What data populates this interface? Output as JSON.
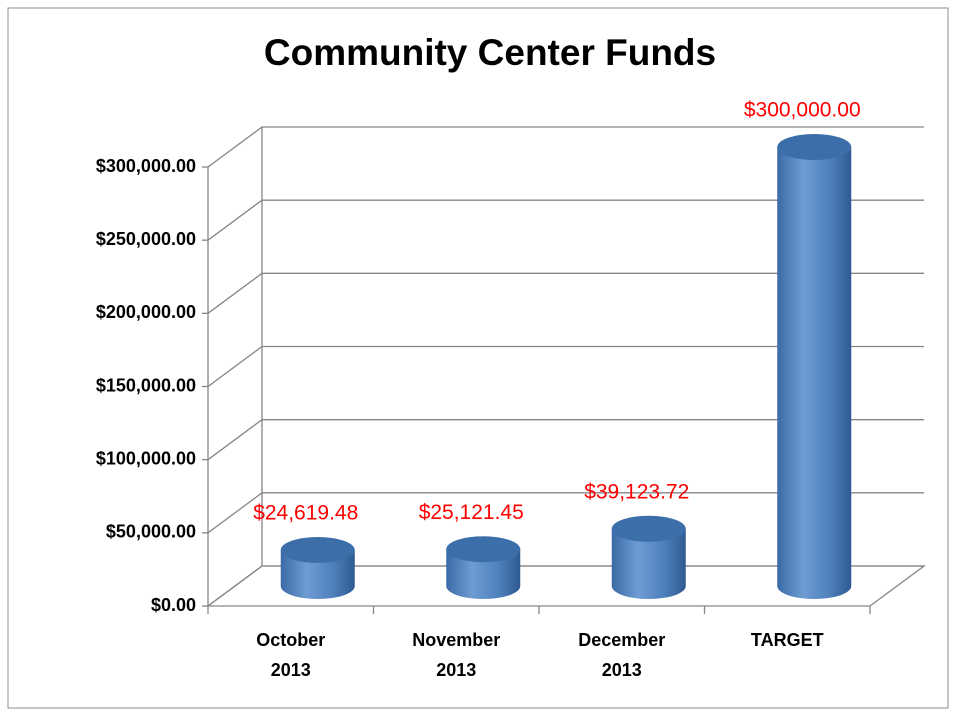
{
  "chart_data": {
    "type": "bar3d",
    "title": "Community Center Funds",
    "categories": [
      "October 2013",
      "November 2013",
      "December 2013",
      "TARGET"
    ],
    "values": [
      24619.48,
      25121.45,
      39123.72,
      300000
    ],
    "value_labels": [
      "$24,619.48",
      "$25,121.45",
      "$39,123.72",
      "$300,000.00"
    ],
    "color": "#4f81bd",
    "value_label_color": "#ff0000",
    "ylim": [
      0,
      300000
    ],
    "yticks": [
      {
        "value": 0,
        "label": "$0.00"
      },
      {
        "value": 50000,
        "label": "$50,000.00"
      },
      {
        "value": 100000,
        "label": "$100,000.00"
      },
      {
        "value": 150000,
        "label": "$150,000.00"
      },
      {
        "value": 200000,
        "label": "$200,000.00"
      },
      {
        "value": 250000,
        "label": "$250,000.00"
      },
      {
        "value": 300000,
        "label": "$300,000.00"
      }
    ],
    "grid": true
  }
}
